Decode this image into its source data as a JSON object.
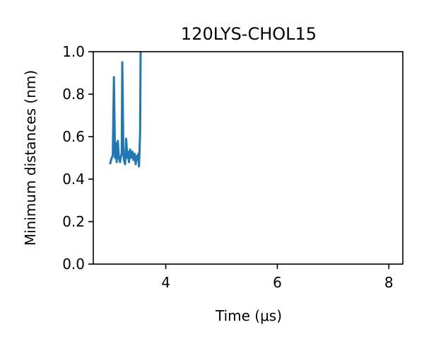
{
  "chart_data": {
    "type": "line",
    "title": "120LYS-CHOL15",
    "xlabel": "Time (μs)",
    "ylabel": "Minimum distances (nm)",
    "xlim": [
      2.7,
      8.25
    ],
    "ylim": [
      0.0,
      1.0
    ],
    "xticks": [
      4,
      6,
      8
    ],
    "yticks": [
      0.0,
      0.2,
      0.4,
      0.6,
      0.8,
      1.0
    ],
    "xtick_labels": [
      "4",
      "6",
      "8"
    ],
    "ytick_labels": [
      "0.0",
      "0.2",
      "0.4",
      "0.6",
      "0.8",
      "1.0"
    ],
    "grid": false,
    "legend": "none",
    "series": [
      {
        "color": "#1f77b4",
        "x": [
          3.0,
          3.03,
          3.05,
          3.07,
          3.09,
          3.1,
          3.12,
          3.14,
          3.16,
          3.18,
          3.19,
          3.21,
          3.22,
          3.24,
          3.25,
          3.27,
          3.29,
          3.31,
          3.32,
          3.34,
          3.36,
          3.38,
          3.4,
          3.42,
          3.44,
          3.46,
          3.48,
          3.5,
          3.51,
          3.52,
          3.54,
          3.55
        ],
        "y": [
          0.47,
          0.5,
          0.51,
          0.88,
          0.5,
          0.57,
          0.48,
          0.58,
          0.5,
          0.48,
          0.5,
          0.52,
          0.95,
          0.52,
          0.49,
          0.47,
          0.59,
          0.5,
          0.53,
          0.48,
          0.54,
          0.5,
          0.53,
          0.49,
          0.52,
          0.47,
          0.51,
          0.49,
          0.52,
          0.46,
          0.62,
          1.05
        ]
      }
    ]
  }
}
